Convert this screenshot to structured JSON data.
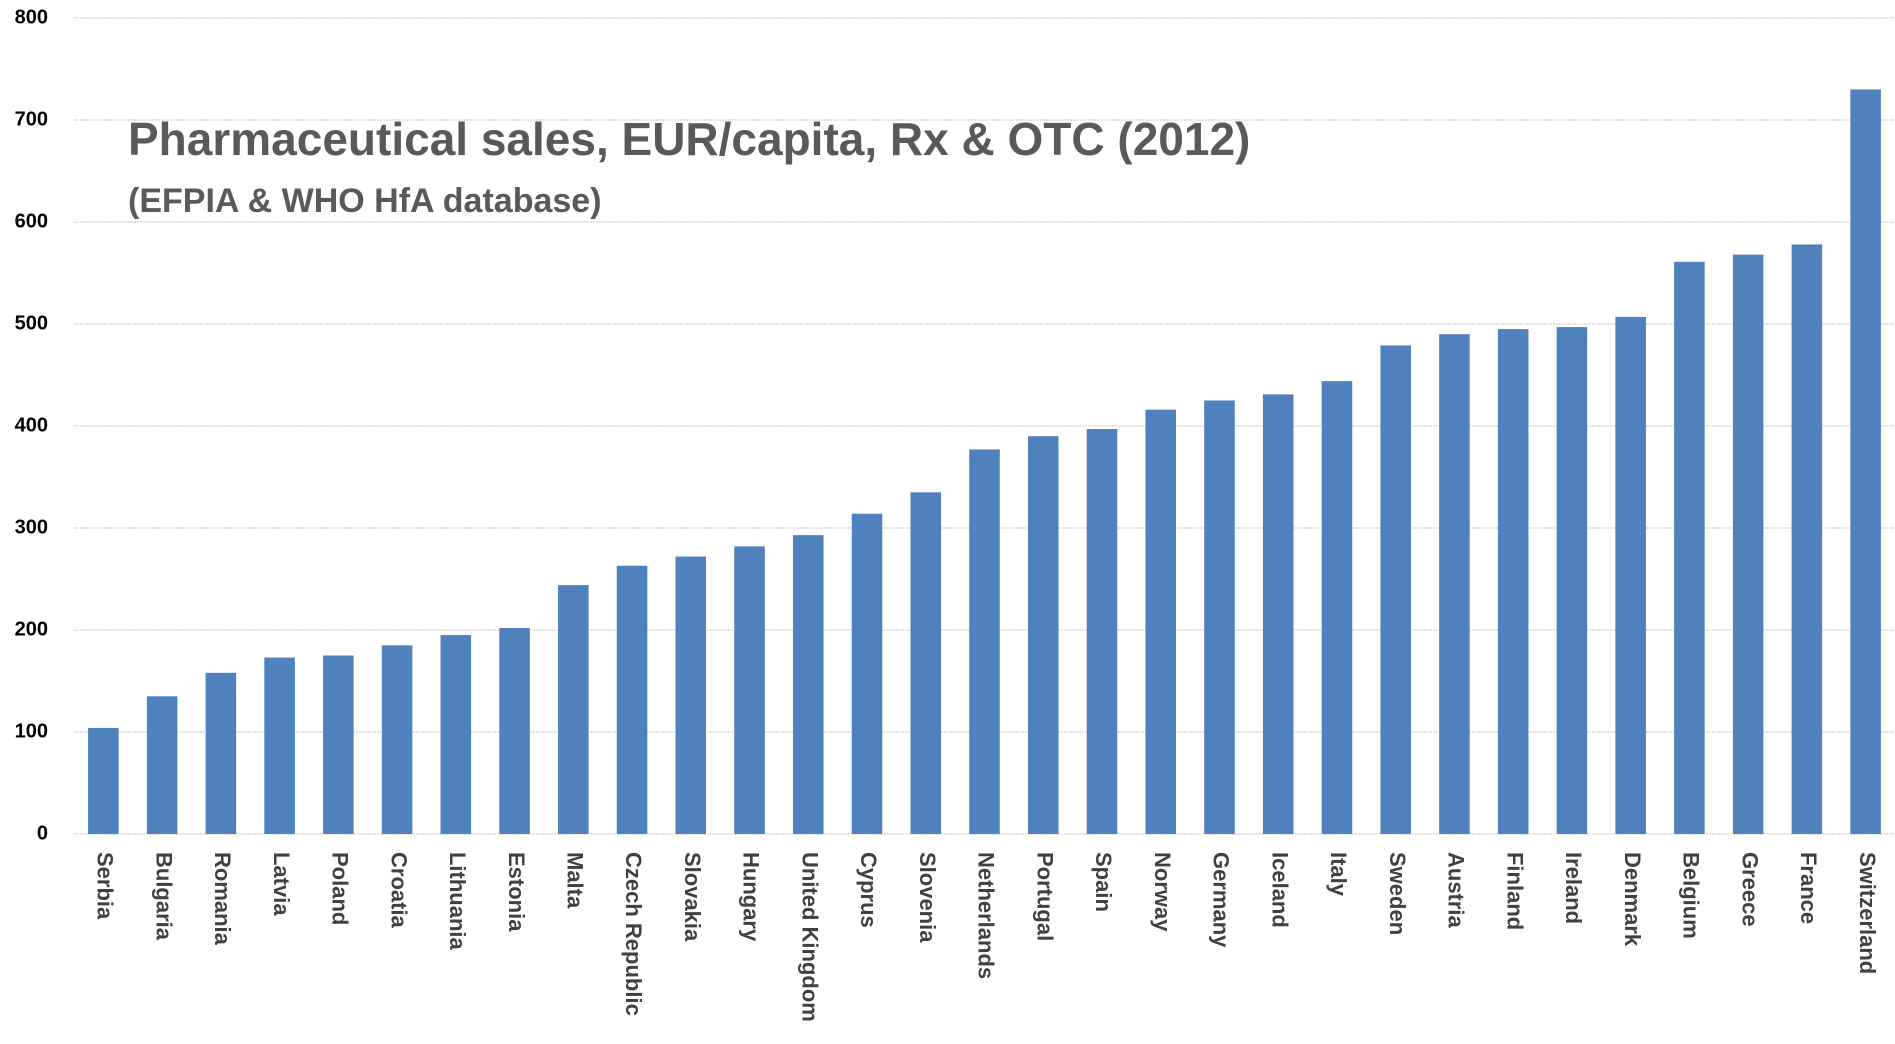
{
  "chart_data": {
    "type": "bar",
    "title": "Pharmaceutical sales, EUR/capita, Rx & OTC (2012)",
    "subtitle": "(EFPIA & WHO HfA database)",
    "categories": [
      "Serbia",
      "Bulgaria",
      "Romania",
      "Latvia",
      "Poland",
      "Croatia",
      "Lithuania",
      "Estonia",
      "Malta",
      "Czech Republic",
      "Slovakia",
      "Hungary",
      "United Kingdom",
      "Cyprus",
      "Slovenia",
      "Netherlands",
      "Portugal",
      "Spain",
      "Norway",
      "Germany",
      "Iceland",
      "Italy",
      "Sweden",
      "Austria",
      "Finland",
      "Ireland",
      "Denmark",
      "Belgium",
      "Greece",
      "France",
      "Switzerland"
    ],
    "values": [
      104,
      135,
      158,
      173,
      175,
      185,
      195,
      202,
      244,
      263,
      272,
      282,
      293,
      314,
      335,
      377,
      390,
      397,
      416,
      425,
      431,
      444,
      479,
      490,
      495,
      497,
      507,
      561,
      568,
      578,
      730
    ],
    "color": "#4f81bd",
    "ylim": [
      0,
      800
    ],
    "yticks": [
      0,
      100,
      200,
      300,
      400,
      500,
      600,
      700,
      800
    ],
    "grid": true
  }
}
